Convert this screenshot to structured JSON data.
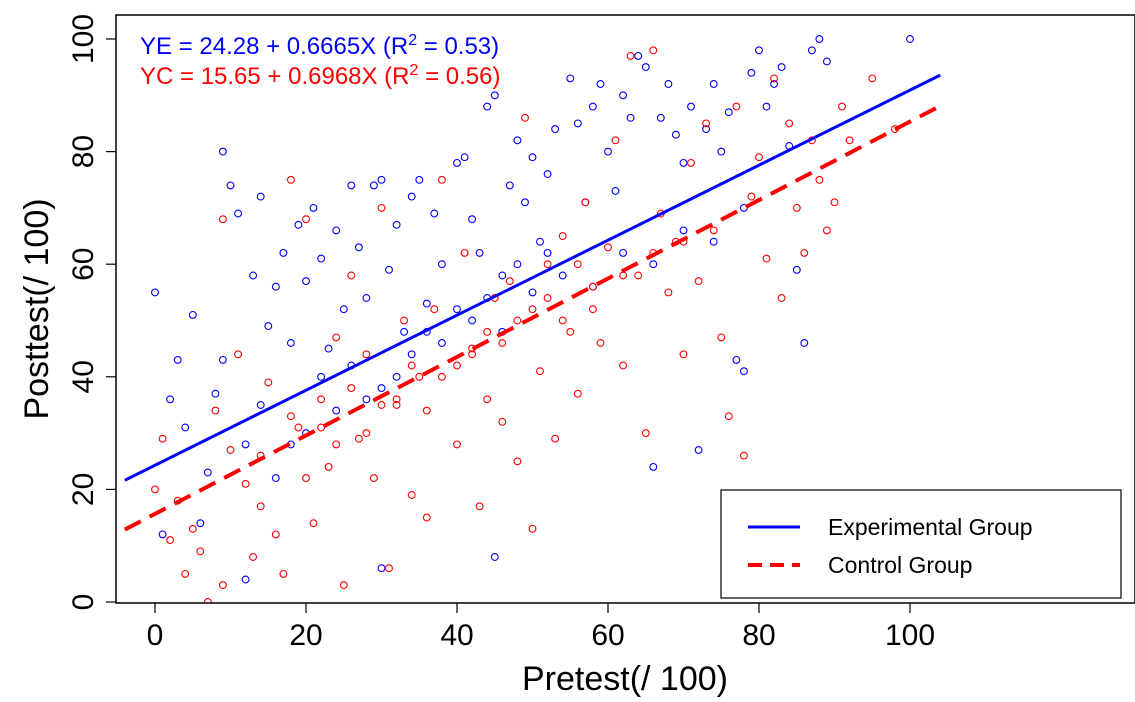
{
  "chart_data": {
    "type": "scatter",
    "title": "",
    "xlabel": "Pretest(/ 100)",
    "ylabel": "Posttest(/ 100)",
    "xlim": [
      -4,
      104
    ],
    "ylim": [
      0,
      100
    ],
    "x_ticks": [
      0,
      20,
      40,
      60,
      80,
      100
    ],
    "y_ticks": [
      0,
      20,
      40,
      60,
      80,
      100
    ],
    "x_tick_labels": [
      "0",
      "20",
      "40",
      "60",
      "80",
      "100"
    ],
    "y_tick_labels": [
      "0",
      "20",
      "40",
      "60",
      "80",
      "100"
    ],
    "grid": false,
    "legend_position": "bottom-right",
    "series": [
      {
        "name": "Experimental Group",
        "color": "#0000ff",
        "marker": "open-circle",
        "line_style": "solid",
        "equation": {
          "prefix": "YE = 24.28 + 0.6665X (R",
          "sup": "2",
          "suffix": " = 0.53)"
        },
        "intercept": 24.28,
        "slope": 0.6665,
        "r_squared": 0.53,
        "points": [
          [
            0,
            55
          ],
          [
            1,
            12
          ],
          [
            2,
            36
          ],
          [
            3,
            43
          ],
          [
            4,
            31
          ],
          [
            5,
            51
          ],
          [
            6,
            14
          ],
          [
            7,
            23
          ],
          [
            8,
            37
          ],
          [
            9,
            43
          ],
          [
            9,
            80
          ],
          [
            10,
            74
          ],
          [
            11,
            69
          ],
          [
            12,
            28
          ],
          [
            13,
            58
          ],
          [
            14,
            72
          ],
          [
            15,
            49
          ],
          [
            16,
            56
          ],
          [
            17,
            62
          ],
          [
            18,
            46
          ],
          [
            19,
            67
          ],
          [
            20,
            57
          ],
          [
            21,
            70
          ],
          [
            22,
            61
          ],
          [
            23,
            45
          ],
          [
            24,
            66
          ],
          [
            25,
            52
          ],
          [
            26,
            74
          ],
          [
            27,
            63
          ],
          [
            28,
            54
          ],
          [
            29,
            74
          ],
          [
            30,
            75
          ],
          [
            31,
            59
          ],
          [
            32,
            67
          ],
          [
            33,
            48
          ],
          [
            34,
            72
          ],
          [
            35,
            75
          ],
          [
            36,
            53
          ],
          [
            37,
            69
          ],
          [
            38,
            60
          ],
          [
            40,
            78
          ],
          [
            41,
            79
          ],
          [
            42,
            68
          ],
          [
            43,
            62
          ],
          [
            44,
            88
          ],
          [
            45,
            90
          ],
          [
            45,
            8
          ],
          [
            46,
            58
          ],
          [
            47,
            74
          ],
          [
            48,
            82
          ],
          [
            49,
            71
          ],
          [
            50,
            79
          ],
          [
            51,
            64
          ],
          [
            52,
            76
          ],
          [
            53,
            84
          ],
          [
            55,
            93
          ],
          [
            56,
            85
          ],
          [
            57,
            71
          ],
          [
            58,
            88
          ],
          [
            59,
            92
          ],
          [
            60,
            80
          ],
          [
            61,
            73
          ],
          [
            62,
            90
          ],
          [
            63,
            86
          ],
          [
            64,
            97
          ],
          [
            65,
            95
          ],
          [
            66,
            24
          ],
          [
            67,
            86
          ],
          [
            68,
            92
          ],
          [
            69,
            83
          ],
          [
            70,
            78
          ],
          [
            71,
            88
          ],
          [
            72,
            27
          ],
          [
            73,
            84
          ],
          [
            74,
            92
          ],
          [
            75,
            80
          ],
          [
            76,
            87
          ],
          [
            77,
            43
          ],
          [
            78,
            41
          ],
          [
            79,
            94
          ],
          [
            80,
            98
          ],
          [
            81,
            88
          ],
          [
            82,
            92
          ],
          [
            83,
            95
          ],
          [
            84,
            81
          ],
          [
            85,
            59
          ],
          [
            86,
            46
          ],
          [
            87,
            98
          ],
          [
            88,
            100
          ],
          [
            89,
            96
          ],
          [
            100,
            100
          ],
          [
            12,
            4
          ],
          [
            30,
            6
          ],
          [
            14,
            35
          ],
          [
            18,
            28
          ],
          [
            22,
            40
          ],
          [
            26,
            42
          ],
          [
            30,
            38
          ],
          [
            34,
            44
          ],
          [
            38,
            46
          ],
          [
            42,
            50
          ],
          [
            46,
            48
          ],
          [
            50,
            55
          ],
          [
            54,
            58
          ],
          [
            58,
            56
          ],
          [
            62,
            62
          ],
          [
            66,
            60
          ],
          [
            70,
            66
          ],
          [
            74,
            64
          ],
          [
            78,
            70
          ],
          [
            16,
            22
          ],
          [
            20,
            30
          ],
          [
            24,
            34
          ],
          [
            28,
            36
          ],
          [
            32,
            40
          ],
          [
            36,
            48
          ],
          [
            40,
            52
          ],
          [
            44,
            54
          ],
          [
            48,
            60
          ],
          [
            52,
            62
          ]
        ]
      },
      {
        "name": "Control Group",
        "color": "#ff0000",
        "marker": "open-circle",
        "line_style": "dashed",
        "equation": {
          "prefix": "YC = 15.65 + 0.6968X (R",
          "sup": "2",
          "suffix": " = 0.56)"
        },
        "intercept": 15.65,
        "slope": 0.6968,
        "r_squared": 0.56,
        "points": [
          [
            0,
            20
          ],
          [
            1,
            29
          ],
          [
            2,
            11
          ],
          [
            3,
            18
          ],
          [
            4,
            5
          ],
          [
            5,
            13
          ],
          [
            6,
            9
          ],
          [
            7,
            0
          ],
          [
            8,
            34
          ],
          [
            9,
            3
          ],
          [
            9,
            68
          ],
          [
            10,
            27
          ],
          [
            11,
            44
          ],
          [
            12,
            21
          ],
          [
            13,
            8
          ],
          [
            14,
            17
          ],
          [
            15,
            39
          ],
          [
            16,
            12
          ],
          [
            17,
            5
          ],
          [
            18,
            75
          ],
          [
            19,
            31
          ],
          [
            20,
            68
          ],
          [
            21,
            14
          ],
          [
            22,
            36
          ],
          [
            23,
            24
          ],
          [
            24,
            47
          ],
          [
            25,
            3
          ],
          [
            26,
            58
          ],
          [
            27,
            29
          ],
          [
            28,
            44
          ],
          [
            29,
            22
          ],
          [
            30,
            70
          ],
          [
            31,
            6
          ],
          [
            32,
            35
          ],
          [
            33,
            50
          ],
          [
            34,
            19
          ],
          [
            35,
            40
          ],
          [
            36,
            15
          ],
          [
            37,
            52
          ],
          [
            38,
            75
          ],
          [
            40,
            28
          ],
          [
            41,
            62
          ],
          [
            42,
            45
          ],
          [
            43,
            17
          ],
          [
            44,
            36
          ],
          [
            45,
            54
          ],
          [
            46,
            32
          ],
          [
            47,
            57
          ],
          [
            48,
            25
          ],
          [
            49,
            86
          ],
          [
            50,
            13
          ],
          [
            51,
            41
          ],
          [
            52,
            60
          ],
          [
            53,
            29
          ],
          [
            54,
            65
          ],
          [
            55,
            48
          ],
          [
            56,
            37
          ],
          [
            57,
            71
          ],
          [
            58,
            52
          ],
          [
            59,
            46
          ],
          [
            60,
            63
          ],
          [
            61,
            82
          ],
          [
            62,
            42
          ],
          [
            63,
            97
          ],
          [
            64,
            58
          ],
          [
            65,
            30
          ],
          [
            66,
            98
          ],
          [
            67,
            69
          ],
          [
            68,
            55
          ],
          [
            69,
            64
          ],
          [
            70,
            44
          ],
          [
            71,
            78
          ],
          [
            72,
            57
          ],
          [
            73,
            85
          ],
          [
            74,
            66
          ],
          [
            75,
            47
          ],
          [
            76,
            33
          ],
          [
            77,
            88
          ],
          [
            78,
            26
          ],
          [
            79,
            72
          ],
          [
            80,
            79
          ],
          [
            81,
            61
          ],
          [
            82,
            93
          ],
          [
            83,
            54
          ],
          [
            84,
            85
          ],
          [
            85,
            70
          ],
          [
            86,
            62
          ],
          [
            87,
            82
          ],
          [
            88,
            75
          ],
          [
            89,
            66
          ],
          [
            90,
            71
          ],
          [
            91,
            88
          ],
          [
            92,
            82
          ],
          [
            95,
            93
          ],
          [
            98,
            84
          ],
          [
            14,
            26
          ],
          [
            18,
            33
          ],
          [
            22,
            31
          ],
          [
            26,
            38
          ],
          [
            30,
            35
          ],
          [
            34,
            42
          ],
          [
            38,
            40
          ],
          [
            42,
            44
          ],
          [
            46,
            46
          ],
          [
            50,
            52
          ],
          [
            54,
            50
          ],
          [
            58,
            56
          ],
          [
            62,
            58
          ],
          [
            66,
            62
          ],
          [
            70,
            64
          ],
          [
            20,
            22
          ],
          [
            24,
            28
          ],
          [
            28,
            30
          ],
          [
            32,
            36
          ],
          [
            36,
            34
          ],
          [
            40,
            42
          ],
          [
            44,
            48
          ],
          [
            48,
            50
          ],
          [
            52,
            54
          ],
          [
            56,
            60
          ]
        ]
      }
    ]
  }
}
